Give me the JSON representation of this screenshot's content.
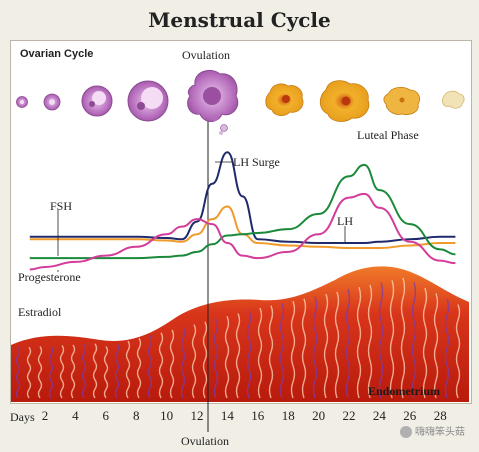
{
  "title": "Menstrual Cycle",
  "labels": {
    "ovarian_cycle": "Ovarian Cycle",
    "ovulation_top": "Ovulation",
    "ovulation_bottom": "Ovulation",
    "lh_surge": "LH Surge",
    "luteal_phase": "Luteal Phase",
    "fsh": "FSH",
    "lh": "LH",
    "progesterone": "Progesterone",
    "estradiol": "Estradiol",
    "endometrium": "Endometrium",
    "days": "Days"
  },
  "days": [
    2,
    4,
    6,
    8,
    10,
    12,
    14,
    16,
    18,
    20,
    22,
    24,
    26,
    28
  ],
  "watermark": "嗨嗨笨头菇",
  "colors": {
    "fsh": "#1f2a6b",
    "lh": "#1f2a6b",
    "lh_mid": "#d43c9a",
    "progesterone": "#1a8a3a",
    "estradiol": "#d43c9a",
    "orange": "#f09a2a",
    "endometrium": "#cf2b10",
    "follicle": "#b46ab8",
    "corpus_luteum": "#e6a21e"
  },
  "chart_data": {
    "type": "line",
    "x": [
      1,
      2,
      4,
      6,
      8,
      10,
      11,
      12,
      13,
      14,
      15,
      16,
      18,
      20,
      22,
      23,
      24,
      26,
      28,
      29
    ],
    "series": [
      {
        "name": "FSH",
        "values": [
          2.6,
          2.6,
          2.6,
          2.6,
          2.6,
          2.5,
          2.4,
          3.0,
          4.2,
          5.2,
          3.0,
          2.3,
          2.1,
          2.0,
          1.9,
          1.9,
          1.9,
          2.1,
          2.3,
          2.3
        ]
      },
      {
        "name": "LH",
        "values": [
          2.8,
          2.8,
          2.8,
          2.8,
          2.8,
          2.7,
          2.6,
          4.0,
          7.0,
          9.5,
          6.0,
          2.6,
          2.4,
          2.3,
          2.3,
          2.3,
          2.4,
          2.6,
          2.8,
          2.8
        ]
      },
      {
        "name": "Progesterone",
        "values": [
          1.1,
          1.1,
          1.1,
          1.1,
          1.1,
          1.2,
          1.3,
          1.6,
          2.2,
          2.9,
          3.0,
          3.1,
          3.4,
          4.6,
          7.6,
          8.5,
          6.5,
          3.8,
          1.8,
          1.4
        ]
      },
      {
        "name": "Estradiol",
        "values": [
          0.2,
          0.4,
          0.8,
          1.3,
          2.0,
          3.0,
          3.6,
          4.2,
          3.8,
          2.3,
          1.3,
          1.1,
          1.6,
          3.0,
          5.9,
          6.2,
          5.1,
          2.4,
          0.9,
          0.7
        ]
      }
    ],
    "xlabel": "Days",
    "x_ticks": [
      2,
      4,
      6,
      8,
      10,
      12,
      14,
      16,
      18,
      20,
      22,
      24,
      26,
      28
    ],
    "annotations": [
      "LH Surge",
      "Luteal Phase",
      "Ovulation"
    ]
  }
}
